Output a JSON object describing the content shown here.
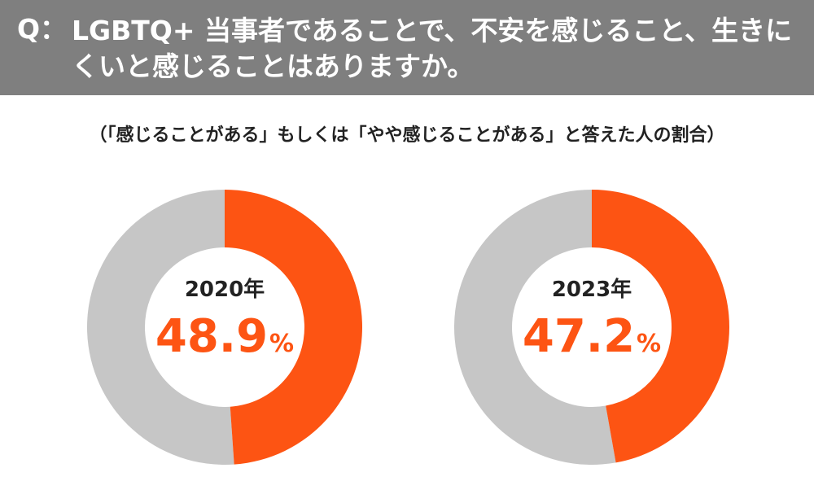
{
  "question": {
    "mark": "Q：",
    "text": "LGBTQ+ 当事者であることで、不安を感じること、生きにくいと感じることはありますか。"
  },
  "subtitle": "（「感じることがある」もしくは「やや感じることがある」と答えた人の割合）",
  "colors": {
    "accent": "#fd5413",
    "remainder": "#c6c6c6",
    "header_bg": "#7f7f7f"
  },
  "chart_data": [
    {
      "type": "pie",
      "variant": "donut",
      "year": "2020年",
      "value": 48.9,
      "number": "48.9",
      "unit": "%",
      "total": 100
    },
    {
      "type": "pie",
      "variant": "donut",
      "year": "2023年",
      "value": 47.2,
      "number": "47.2",
      "unit": "%",
      "total": 100
    }
  ]
}
